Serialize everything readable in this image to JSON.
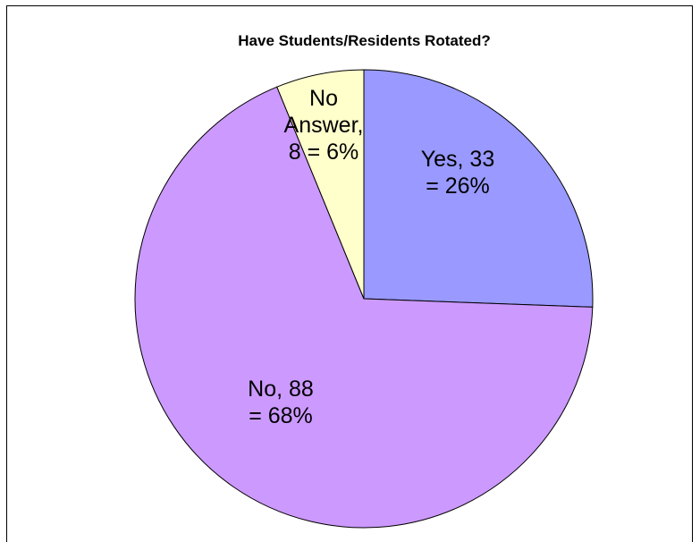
{
  "chart_data": {
    "type": "pie",
    "title": "Have Students/Residents Rotated?",
    "slices": [
      {
        "name": "Yes",
        "value": 33,
        "percent": 26,
        "color": "#9999ff",
        "label_lines": [
          "Yes, 33",
          "= 26%"
        ]
      },
      {
        "name": "No",
        "value": 88,
        "percent": 68,
        "color": "#cc99ff",
        "label_lines": [
          "No, 88",
          "= 68%"
        ]
      },
      {
        "name": "No Answer",
        "value": 8,
        "percent": 6,
        "color": "#ffffcc",
        "label_lines": [
          "No",
          "Answer,",
          "8 = 6%"
        ]
      }
    ],
    "start_angle": "12 o'clock",
    "direction": "clockwise",
    "legend": "none"
  }
}
